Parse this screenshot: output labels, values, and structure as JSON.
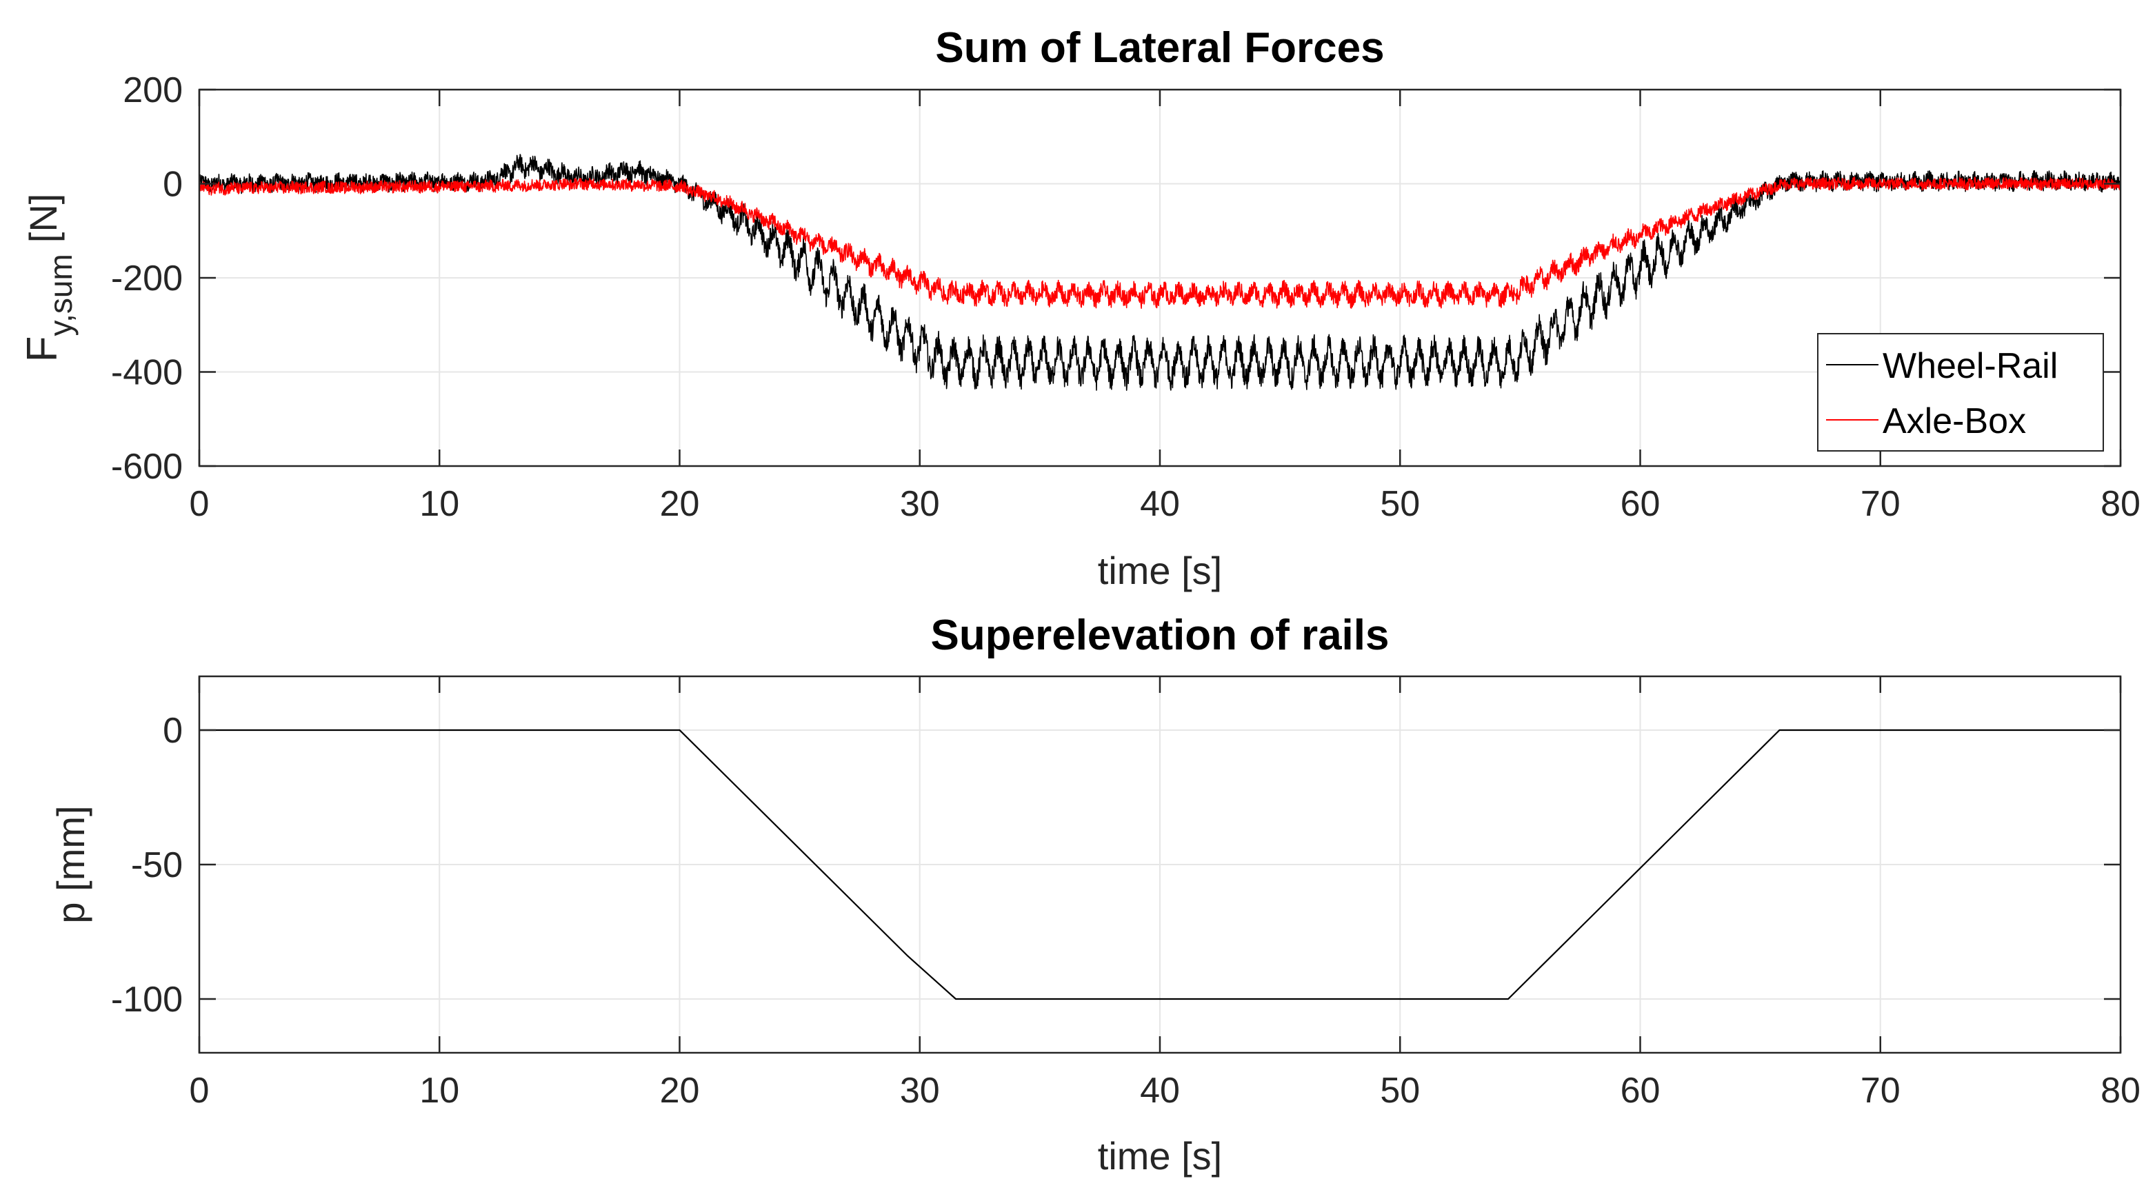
{
  "chart_data": [
    {
      "type": "line",
      "title": "Sum of Lateral Forces",
      "xlabel": "time [s]",
      "ylabel_main": "F",
      "ylabel_sub": "y,sum",
      "ylabel_unit": "[N]",
      "xlim": [
        0,
        80
      ],
      "ylim": [
        -600,
        200
      ],
      "xticks": [
        0,
        10,
        20,
        30,
        40,
        50,
        60,
        70,
        80
      ],
      "xtick_labels": [
        "0",
        "10",
        "20",
        "30",
        "40",
        "50",
        "60",
        "70",
        "80"
      ],
      "yticks": [
        200,
        0,
        -200,
        -400,
        -600
      ],
      "ytick_labels": [
        "200",
        "0",
        "-200",
        "-400",
        "-600"
      ],
      "grid": true,
      "legend_position": "bottom-right",
      "series": [
        {
          "name": "Wheel-Rail",
          "color": "#000000",
          "x": [
            0,
            12,
            13.5,
            16,
            18,
            20,
            22,
            25,
            28,
            31,
            35,
            40,
            45,
            50,
            54.5,
            56,
            58,
            60,
            63,
            66,
            70,
            75,
            80
          ],
          "y": [
            0,
            5,
            40,
            10,
            30,
            0,
            -60,
            -160,
            -280,
            -380,
            -380,
            -380,
            -380,
            -380,
            -380,
            -330,
            -250,
            -180,
            -90,
            5,
            5,
            5,
            5
          ],
          "noise_amplitude": 25,
          "oscillation_amplitude": 35
        },
        {
          "name": "Axle-Box",
          "color": "#ff0000",
          "x": [
            0,
            12,
            16,
            20,
            22,
            25,
            28,
            31,
            35,
            40,
            45,
            50,
            54.5,
            56,
            58,
            60,
            63,
            66,
            70,
            75,
            80
          ],
          "y": [
            -10,
            -5,
            0,
            -5,
            -40,
            -110,
            -170,
            -230,
            -235,
            -235,
            -235,
            -235,
            -235,
            -200,
            -150,
            -110,
            -50,
            0,
            0,
            0,
            0
          ],
          "noise_amplitude": 18,
          "oscillation_amplitude": 12
        }
      ]
    },
    {
      "type": "line",
      "title": "Superelevation of rails",
      "xlabel": "time [s]",
      "ylabel": "p [mm]",
      "xlim": [
        0,
        80
      ],
      "ylim": [
        -120,
        20
      ],
      "xticks": [
        0,
        10,
        20,
        30,
        40,
        50,
        60,
        70,
        80
      ],
      "xtick_labels": [
        "0",
        "10",
        "20",
        "30",
        "40",
        "50",
        "60",
        "70",
        "80"
      ],
      "yticks": [
        0,
        -50,
        -100
      ],
      "ytick_labels": [
        "0",
        "-50",
        "-100"
      ],
      "grid": true,
      "series": [
        {
          "name": "p",
          "color": "#000000",
          "x": [
            0,
            20,
            29.5,
            30.5,
            31.5,
            54.5,
            65.8,
            80
          ],
          "y": [
            0,
            0,
            -84,
            -92,
            -100,
            -100,
            0,
            0
          ]
        }
      ]
    }
  ]
}
